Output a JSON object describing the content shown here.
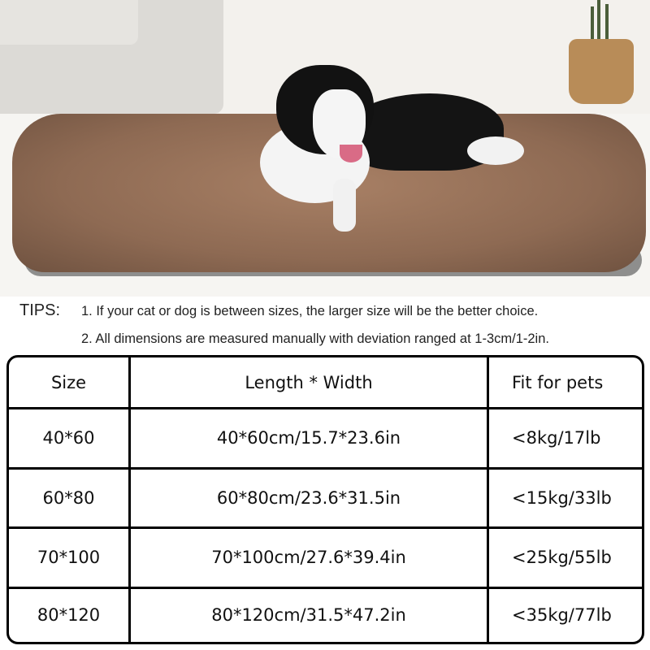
{
  "photo": {
    "subject": "black and white dog on brown fluffy pet bed"
  },
  "tips": {
    "label": "TIPS:",
    "items": [
      "1. If your cat or dog is between sizes, the larger size will be the better choice.",
      "2. All dimensions are measured manually with deviation ranged at 1-3cm/1-2in."
    ]
  },
  "table": {
    "headers": [
      "Size",
      "Length * Width",
      "Fit for pets"
    ],
    "rows": [
      [
        "40*60",
        "40*60cm/15.7*23.6in",
        "<8kg/17lb"
      ],
      [
        "60*80",
        "60*80cm/23.6*31.5in",
        "<15kg/33lb"
      ],
      [
        "70*100",
        "70*100cm/27.6*39.4in",
        "<25kg/55lb"
      ],
      [
        "80*120",
        "80*120cm/31.5*47.2in",
        "<35kg/77lb"
      ]
    ]
  }
}
